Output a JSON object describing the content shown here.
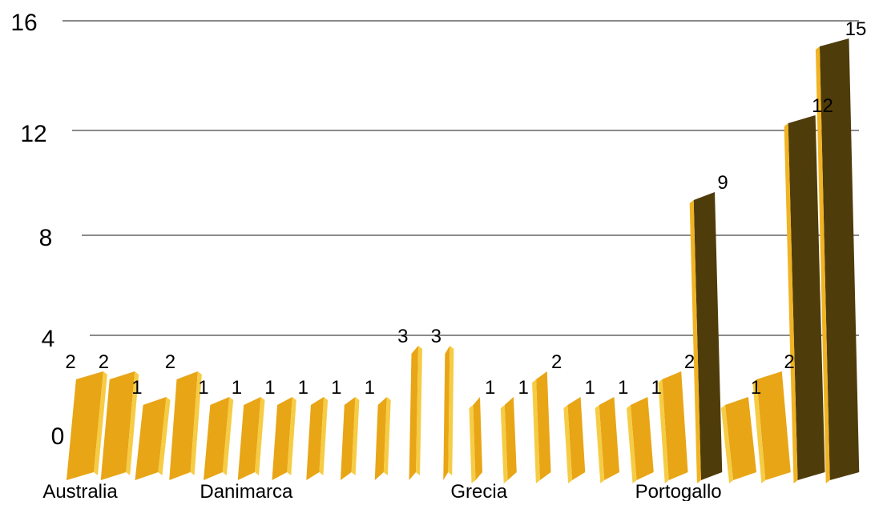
{
  "chart_data": {
    "type": "bar",
    "categories": [
      "Australia",
      "",
      "",
      "",
      "",
      "Danimarca",
      "",
      "",
      "",
      "",
      "",
      "",
      "Grecia",
      "",
      "",
      "",
      "",
      "",
      "Portogallo",
      "",
      "",
      "",
      "",
      ""
    ],
    "values": [
      2,
      2,
      1,
      2,
      1,
      1,
      1,
      1,
      1,
      1,
      3,
      3,
      1,
      1,
      2,
      1,
      1,
      1,
      2,
      9,
      1,
      2,
      12,
      15
    ],
    "data_labels": [
      "2",
      "2",
      "1",
      "2",
      "1",
      "1",
      "1",
      "1",
      "1",
      "1",
      "3",
      "3",
      "1",
      "1",
      "2",
      "1",
      "1",
      "1",
      "2",
      "9",
      "1",
      "2",
      "12",
      "15"
    ],
    "y_ticks": [
      "0",
      "4",
      "8",
      "12",
      "16"
    ],
    "ylim": [
      0,
      16
    ],
    "title": "",
    "xlabel": "",
    "ylabel": "",
    "grid": true,
    "legend": "none",
    "colors": {
      "bar_front": "#e8a515",
      "bar_side": "#f6cc45",
      "bar_top": "#c98a0c",
      "bar_dark": "#4f3c0b",
      "bar_dark_side": "#f0b323",
      "gridline": "#8a8a8a"
    }
  }
}
